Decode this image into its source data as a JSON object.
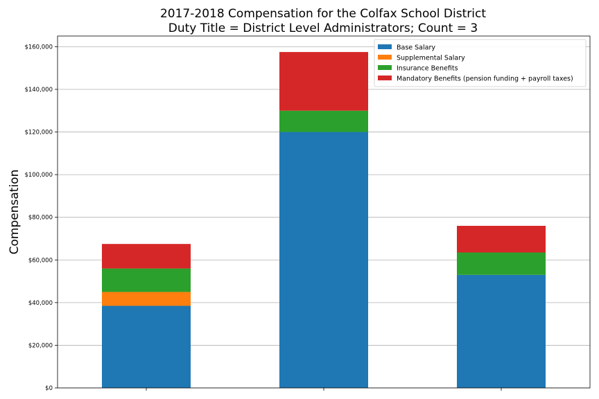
{
  "chart_data": {
    "type": "bar",
    "stacked": true,
    "title": [
      "2017-2018 Compensation for the Colfax School District",
      "Duty Title = District Level Administrators; Count = 3"
    ],
    "xlabel": "",
    "ylabel": "Compensation",
    "categories": [
      "",
      "",
      ""
    ],
    "ylim": [
      0,
      165000
    ],
    "yticks": [
      0,
      20000,
      40000,
      60000,
      80000,
      100000,
      120000,
      140000,
      160000
    ],
    "ytick_labels": [
      "$0",
      "$20,000",
      "$40,000",
      "$60,000",
      "$80,000",
      "$100,000",
      "$120,000",
      "$140,000",
      "$160,000"
    ],
    "grid": "y",
    "legend_position": "top-right",
    "series": [
      {
        "name": "Base Salary",
        "color": "#1f77b4",
        "values": [
          38500,
          120000,
          53000
        ]
      },
      {
        "name": "Supplemental Salary",
        "color": "#ff7f0e",
        "values": [
          6500,
          0,
          0
        ]
      },
      {
        "name": "Insurance Benefits",
        "color": "#2ca02c",
        "values": [
          11000,
          10000,
          10500
        ]
      },
      {
        "name": "Mandatory Benefits (pension funding + payroll taxes)",
        "color": "#d62728",
        "values": [
          11500,
          27500,
          12500
        ]
      }
    ]
  }
}
